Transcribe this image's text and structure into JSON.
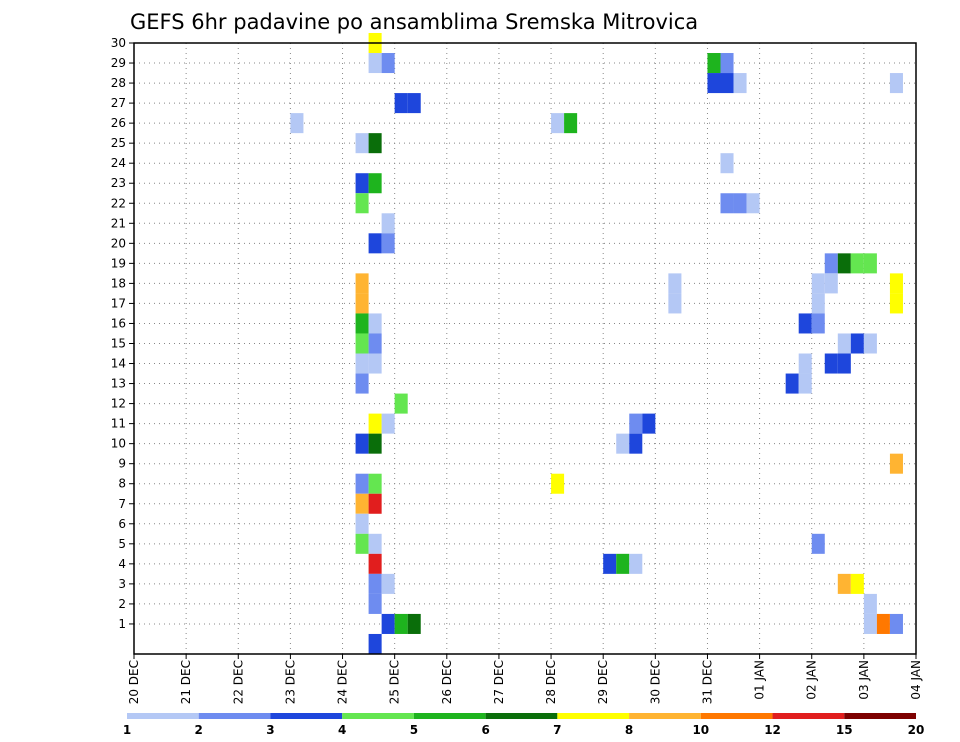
{
  "chart_data": {
    "type": "heatmap",
    "title": "GEFS 6hr padavine po ansamblima Sremska Mitrovica",
    "xlabel": "",
    "ylabel": "",
    "y_ticks": [
      "1",
      "2",
      "3",
      "4",
      "5",
      "6",
      "7",
      "8",
      "9",
      "10",
      "11",
      "12",
      "13",
      "14",
      "15",
      "16",
      "17",
      "18",
      "19",
      "20",
      "21",
      "22",
      "23",
      "24",
      "25",
      "26",
      "27",
      "28",
      "29",
      "30"
    ],
    "x_ticks": [
      "20 DEC",
      "21 DEC",
      "22 DEC",
      "23 DEC",
      "24 DEC",
      "25 DEC",
      "26 DEC",
      "27 DEC",
      "28 DEC",
      "29 DEC",
      "30 DEC",
      "31 DEC",
      "01 JAN",
      "02 JAN",
      "03 JAN",
      "04 JAN"
    ],
    "x_units": "days since 20 DEC 00Z",
    "grid": true,
    "legend": {
      "placement": "bottom",
      "colors": [
        "#b4c8f5",
        "#6e8cf0",
        "#1e46dc",
        "#64e650",
        "#1eb41e",
        "#0a6e0a",
        "#ffff00",
        "#ffb432",
        "#ff7800",
        "#e11e1e",
        "#7d0000"
      ],
      "labels": [
        "1",
        "2",
        "3",
        "4",
        "5",
        "6",
        "7",
        "8",
        "10",
        "12",
        "15",
        "20"
      ]
    },
    "cells": [
      [
        4.5,
        30,
        6
      ],
      [
        4.5,
        29,
        0
      ],
      [
        4.75,
        29,
        1
      ],
      [
        11,
        29,
        4
      ],
      [
        11.25,
        29,
        1
      ],
      [
        11,
        28,
        2
      ],
      [
        11.25,
        28,
        2
      ],
      [
        11.5,
        28,
        0
      ],
      [
        14.5,
        28,
        0
      ],
      [
        5,
        27,
        2
      ],
      [
        5.25,
        27,
        2
      ],
      [
        3,
        26,
        0
      ],
      [
        8,
        26,
        0
      ],
      [
        8.25,
        26,
        4
      ],
      [
        4.25,
        25,
        0
      ],
      [
        4.5,
        25,
        5
      ],
      [
        11.25,
        24,
        0
      ],
      [
        4.25,
        23,
        2
      ],
      [
        4.5,
        23,
        4
      ],
      [
        4.25,
        22,
        3
      ],
      [
        11.25,
        22,
        1
      ],
      [
        11.5,
        22,
        1
      ],
      [
        11.75,
        22,
        0
      ],
      [
        4.75,
        21,
        0
      ],
      [
        4.5,
        20,
        2
      ],
      [
        4.75,
        20,
        1
      ],
      [
        13.25,
        19,
        1
      ],
      [
        13.5,
        19,
        5
      ],
      [
        13.75,
        19,
        3
      ],
      [
        14,
        19,
        3
      ],
      [
        4.25,
        18,
        7
      ],
      [
        10.25,
        18,
        0
      ],
      [
        13,
        18,
        0
      ],
      [
        13.25,
        18,
        0
      ],
      [
        14.5,
        18,
        6
      ],
      [
        4.25,
        17,
        7
      ],
      [
        10.25,
        17,
        0
      ],
      [
        13,
        17,
        0
      ],
      [
        14.5,
        17,
        6
      ],
      [
        4.25,
        16,
        4
      ],
      [
        4.5,
        16,
        0
      ],
      [
        12.75,
        16,
        2
      ],
      [
        13,
        16,
        1
      ],
      [
        4.25,
        15,
        3
      ],
      [
        4.5,
        15,
        1
      ],
      [
        13.5,
        15,
        0
      ],
      [
        13.75,
        15,
        2
      ],
      [
        14,
        15,
        0
      ],
      [
        4.25,
        14,
        0
      ],
      [
        4.5,
        14,
        0
      ],
      [
        12.75,
        14,
        0
      ],
      [
        13.25,
        14,
        2
      ],
      [
        13.5,
        14,
        2
      ],
      [
        4.25,
        13,
        1
      ],
      [
        12.5,
        13,
        2
      ],
      [
        12.75,
        13,
        0
      ],
      [
        5,
        12,
        3
      ],
      [
        4.5,
        11,
        6
      ],
      [
        4.75,
        11,
        0
      ],
      [
        9.5,
        11,
        1
      ],
      [
        9.75,
        11,
        2
      ],
      [
        4.25,
        10,
        2
      ],
      [
        4.5,
        10,
        5
      ],
      [
        9.25,
        10,
        0
      ],
      [
        9.5,
        10,
        2
      ],
      [
        14.5,
        9,
        7
      ],
      [
        4.25,
        8,
        1
      ],
      [
        4.5,
        8,
        3
      ],
      [
        8,
        8,
        6
      ],
      [
        4.25,
        7,
        7
      ],
      [
        4.5,
        7,
        9
      ],
      [
        4.25,
        6,
        0
      ],
      [
        4.25,
        5,
        3
      ],
      [
        4.5,
        5,
        0
      ],
      [
        13,
        5,
        1
      ],
      [
        4.5,
        4,
        9
      ],
      [
        9,
        4,
        2
      ],
      [
        9.25,
        4,
        4
      ],
      [
        9.5,
        4,
        0
      ],
      [
        4.5,
        3,
        1
      ],
      [
        4.75,
        3,
        0
      ],
      [
        13.5,
        3,
        7
      ],
      [
        13.75,
        3,
        6
      ],
      [
        4.5,
        2,
        1
      ],
      [
        14,
        2,
        0
      ],
      [
        4.75,
        1,
        2
      ],
      [
        5,
        1,
        4
      ],
      [
        5.25,
        1,
        5
      ],
      [
        14,
        1,
        0
      ],
      [
        14.25,
        1,
        8
      ],
      [
        14.5,
        1,
        1
      ],
      [
        4.5,
        0,
        2
      ]
    ]
  }
}
